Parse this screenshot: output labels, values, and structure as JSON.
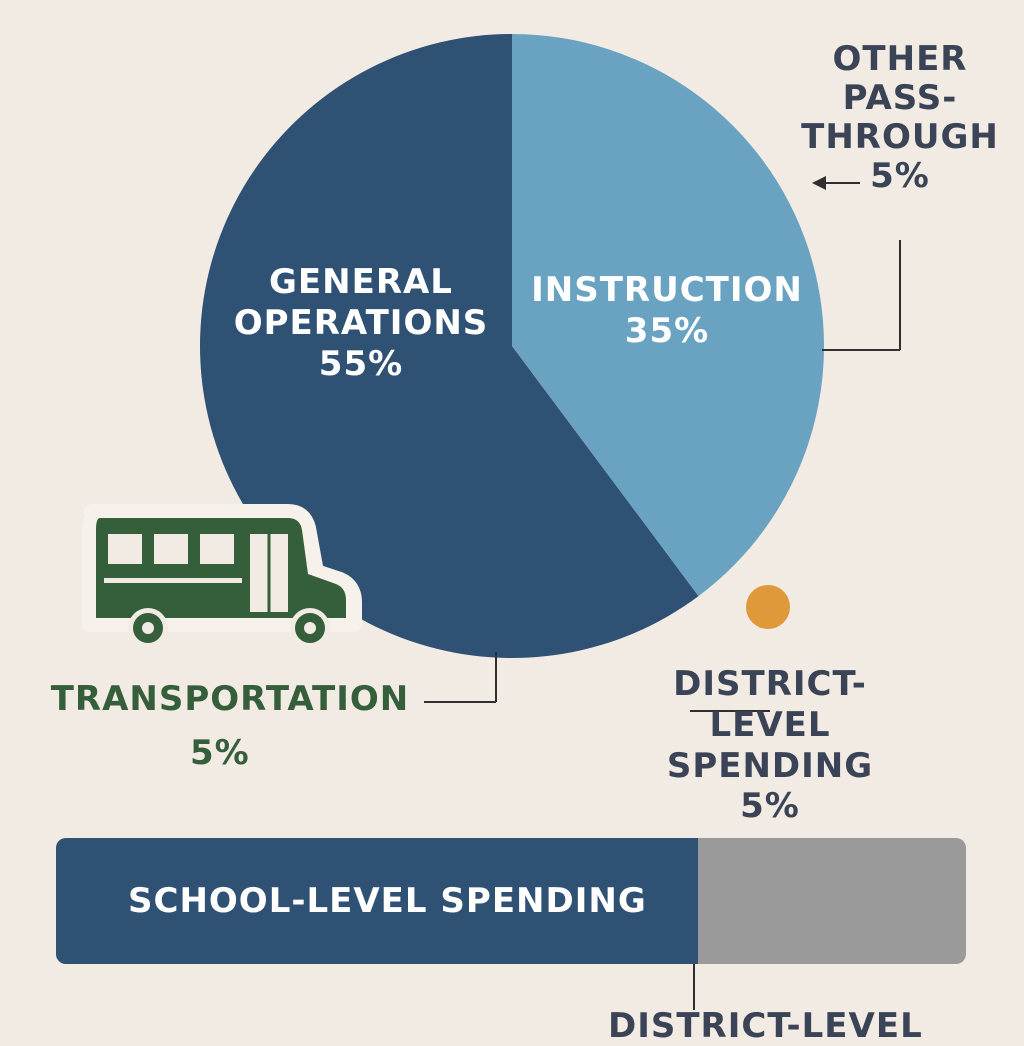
{
  "chart_data": {
    "type": "pie",
    "title": "",
    "categories": [
      "Instruction",
      "General Operations",
      "Other Pass-Through",
      "District-Level Spending",
      "Transportation"
    ],
    "values": [
      35,
      55,
      5,
      5,
      5
    ],
    "labels": {
      "general_operations": {
        "line1": "GENERAL",
        "line2": "OPERATIONS",
        "value": "55%"
      },
      "instruction": {
        "line1": "INSTRUCTION",
        "value": "35%"
      },
      "other_pass_through": {
        "line1": "OTHER",
        "line2": "PASS-",
        "line3": "THROUGH",
        "value": "5%"
      },
      "district_level": {
        "line1": "DISTRICT-",
        "line2": "LEVEL SPENDING",
        "value": "5%"
      },
      "transportation": {
        "line1": "TRANSPORTATION",
        "value": "5%"
      }
    },
    "colors": {
      "general_operations": "#2f5173",
      "instruction": "#6aa3c2",
      "transportation": "#355e3b",
      "district_dot": "#e0993a",
      "background": "#f1ebe3",
      "bar_fill": "#2f5173",
      "bar_remainder": "#9a9a9a"
    }
  },
  "bar": {
    "label": "SCHOOL-LEVEL SPENDING",
    "school_level_share": 0.705
  },
  "footer_partial_text": "DISTRICT-LEVEL",
  "icons": {
    "bus": "school-bus-icon",
    "dot": "orange-dot-icon"
  }
}
